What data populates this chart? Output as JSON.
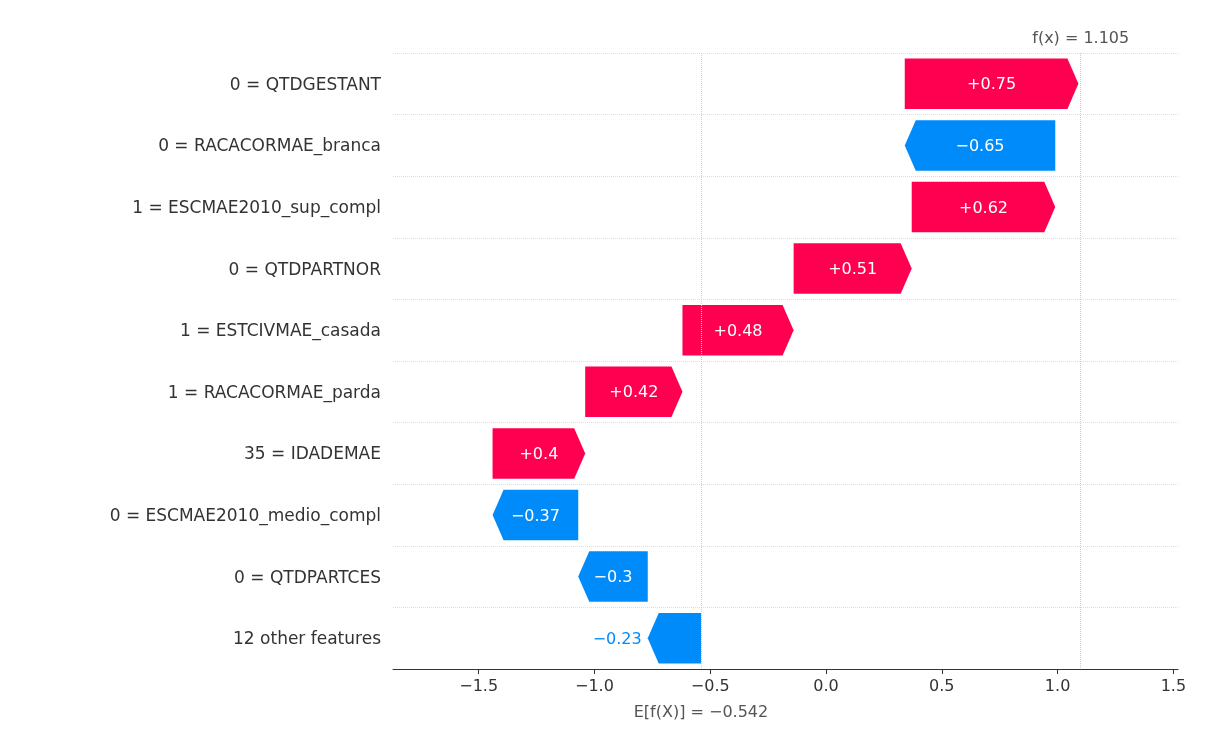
{
  "chart_data": {
    "type": "bar",
    "orientation": "horizontal",
    "categories": [
      "0 = QTDGESTANT",
      "0 = RACACORMAE_branca",
      "1 = ESCMAE2010_sup_compl",
      "0 = QTDPARTNOR",
      "1 = ESTCIVMAE_casada",
      "1 = RACACORMAE_parda",
      "35 = IDADEMAE",
      "0 = ESCMAE2010_medio_compl",
      "0 = QTDPARTCES",
      "12 other features"
    ],
    "values": [
      0.75,
      -0.65,
      0.62,
      0.51,
      0.48,
      0.42,
      0.4,
      -0.37,
      -0.3,
      -0.23
    ],
    "base": [
      0.34,
      0.99,
      0.37,
      -0.14,
      -0.62,
      -1.04,
      -1.44,
      -1.07,
      -0.77,
      -0.54
    ],
    "colors": [
      "#ff0051",
      "#008bfb",
      "#ff0051",
      "#ff0051",
      "#ff0051",
      "#ff0051",
      "#ff0051",
      "#008bfb",
      "#008bfb",
      "#008bfb"
    ],
    "value_labels": [
      "+0.75",
      "−0.65",
      "+0.62",
      "+0.51",
      "+0.48",
      "+0.42",
      "+0.4",
      "−0.37",
      "−0.3",
      "−0.23"
    ],
    "xlim": [
      -1.87,
      1.52
    ],
    "xticks": [
      {
        "value": -1.5,
        "label": "−1.5"
      },
      {
        "value": -1,
        "label": "−1.0"
      },
      {
        "value": -0.5,
        "label": "−0.5"
      },
      {
        "value": 0,
        "label": "0.0"
      },
      {
        "value": 0.5,
        "label": "0.5"
      },
      {
        "value": 1,
        "label": "1.0"
      },
      {
        "value": 1.5,
        "label": "1.5"
      }
    ],
    "grid": "y",
    "ref_lines": [
      {
        "axis": "x",
        "value": -0.542,
        "label": "E[f(X)] = −0.542",
        "color": "#cccccc",
        "line_style": "dotted"
      },
      {
        "axis": "x",
        "value": 1.105,
        "label": "f(x) = 1.105",
        "color": "#cccccc",
        "line_style": "dotted"
      }
    ]
  }
}
